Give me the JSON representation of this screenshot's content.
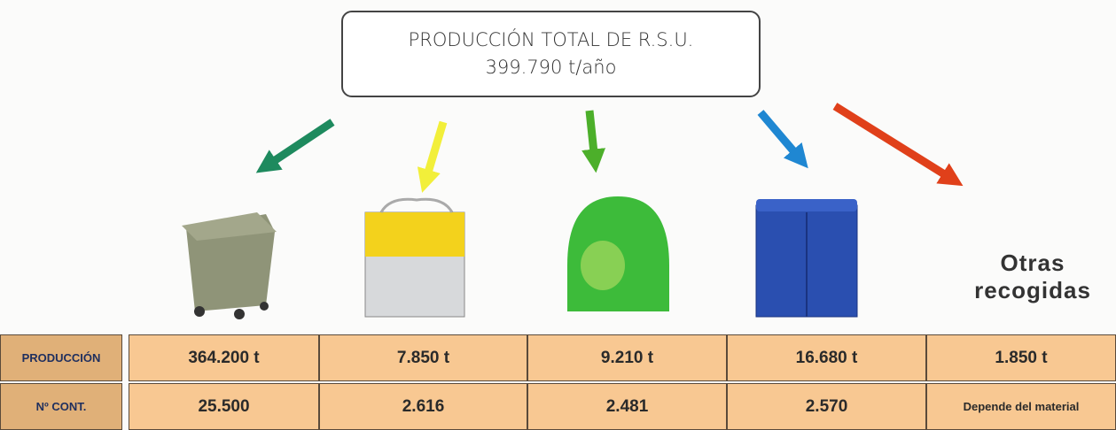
{
  "header": {
    "title": "PRODUCCIÓN TOTAL DE R.S.U.",
    "subtitle": "399.790 t/año"
  },
  "other_label": "Otras recogidas",
  "table": {
    "rows": [
      [
        "PRODUCCIÓN",
        "364.200 t",
        "7.850 t",
        "9.210 t",
        "16.680 t",
        "1.850 t"
      ],
      [
        "Nº CONT.",
        "25.500",
        "2.616",
        "2.481",
        "2.570",
        "Depende del material"
      ]
    ]
  }
}
